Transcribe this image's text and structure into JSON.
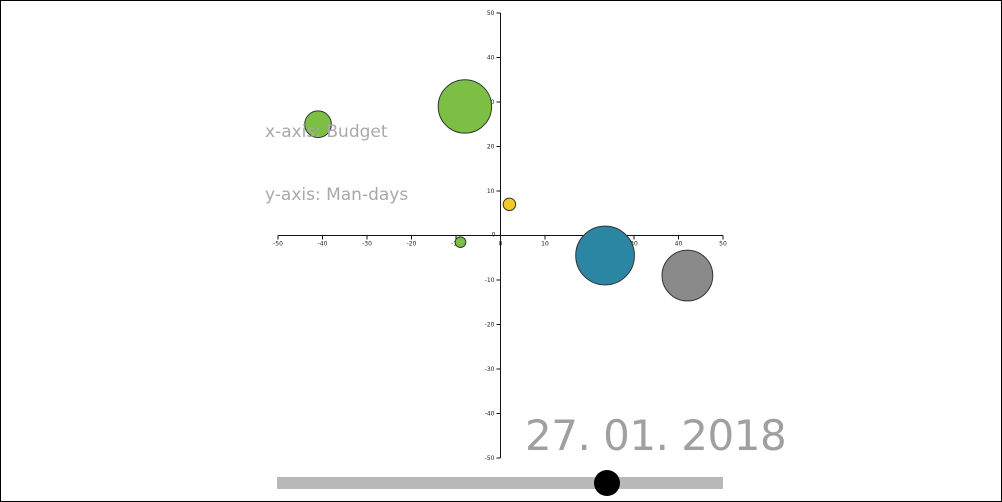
{
  "notes": {
    "x_axis": "x-axis: Budget",
    "y_axis": "y-axis: Man-days"
  },
  "date": "27. 01. 2018",
  "slider": {
    "value": 0.74
  },
  "chart_data": {
    "type": "scatter",
    "title": "",
    "xlim": [
      -50,
      50
    ],
    "ylim": [
      -50,
      50
    ],
    "x_ticks": [
      -50,
      -40,
      -30,
      -20,
      -10,
      0,
      10,
      20,
      30,
      40,
      50
    ],
    "y_ticks": [
      -50,
      -40,
      -30,
      -20,
      -10,
      0,
      10,
      20,
      30,
      40,
      50
    ],
    "grid": false,
    "points": [
      {
        "x": -41,
        "y": 25,
        "size": 3,
        "color": "#7cbf44"
      },
      {
        "x": -8,
        "y": 29,
        "size": 6,
        "color": "#7cbf44"
      },
      {
        "x": 2,
        "y": 7,
        "size": 1.4,
        "color": "#f4c82b"
      },
      {
        "x": -9,
        "y": -1.5,
        "size": 1.2,
        "color": "#7cbf44"
      },
      {
        "x": 23.5,
        "y": -4.5,
        "size": 6.6,
        "color": "#2b86a3"
      },
      {
        "x": 42,
        "y": -9,
        "size": 5.7,
        "color": "#8a8a8a"
      }
    ]
  }
}
